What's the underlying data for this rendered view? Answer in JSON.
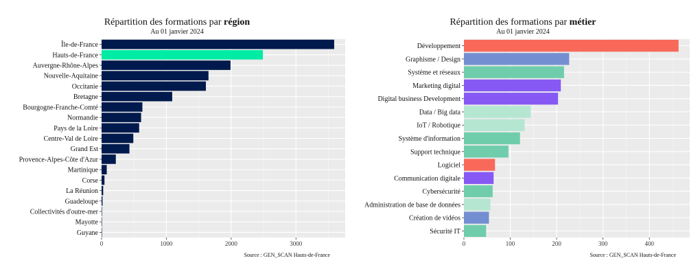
{
  "chart_data": [
    {
      "type": "bar",
      "orientation": "horizontal",
      "title_prefix": "Répartition des formations par ",
      "title_bold": "région",
      "subtitle": "Au 01 janvier 2024",
      "source": "Source : GEN_SCAN Hauts-de-France",
      "categories": [
        "Île-de-France",
        "Hauts-de-France",
        "Auvergne-Rhône-Alpes",
        "Nouvelle-Aquitaine",
        "Occitanie",
        "Bretagne",
        "Bourgogne-Franche-Comté",
        "Normandie",
        "Pays de la Loire",
        "Centre-Val de Loire",
        "Grand Est",
        "Provence-Alpes-Côte d'Azur",
        "Martinique",
        "Corse",
        "La Réunion",
        "Guadeloupe",
        "Collectivités d'outre-mer",
        "Mayotte",
        "Guyane"
      ],
      "values": [
        3590,
        2490,
        1990,
        1650,
        1610,
        1090,
        630,
        610,
        580,
        490,
        430,
        220,
        80,
        45,
        25,
        15,
        5,
        3,
        2
      ],
      "colors": [
        "#001a4d",
        "#00eba3",
        "#001a4d",
        "#001a4d",
        "#001a4d",
        "#001a4d",
        "#001a4d",
        "#001a4d",
        "#001a4d",
        "#001a4d",
        "#001a4d",
        "#001a4d",
        "#001a4d",
        "#001a4d",
        "#001a4d",
        "#001a4d",
        "#001a4d",
        "#001a4d",
        "#001a4d"
      ],
      "xlim": [
        0,
        3760
      ],
      "xticks": [
        0,
        1000,
        2000,
        3000
      ],
      "grid": true,
      "background": "#ebebeb"
    },
    {
      "type": "bar",
      "orientation": "horizontal",
      "title_prefix": "Répartition des formations par ",
      "title_bold": "métier",
      "subtitle": "Au 01 janvier 2024",
      "source": "Source : GEN_SCAN Hauts-de-France",
      "categories": [
        "Développement",
        "Graphisme / Design",
        "Système et réseaux",
        "Marketing digital",
        "Digital business Development",
        "Data / Big data",
        "IoT / Robotique",
        "Système d'information",
        "Support technique",
        "Logiciel",
        "Communication digitale",
        "Cybersécurité",
        "Administration de base de données",
        "Création de vidéos",
        "Sécurité IT"
      ],
      "values": [
        463,
        227,
        216,
        209,
        203,
        144,
        131,
        121,
        96,
        67,
        64,
        62,
        57,
        54,
        48
      ],
      "colors": [
        "#f8695a",
        "#748fd1",
        "#6fcdac",
        "#8759f4",
        "#8759f4",
        "#b5e6d2",
        "#b5e6d2",
        "#6fcdac",
        "#6fcdac",
        "#f8695a",
        "#8759f4",
        "#6fcdac",
        "#b5e6d2",
        "#748fd1",
        "#6fcdac"
      ],
      "xlim": [
        0,
        487
      ],
      "xticks": [
        0,
        100,
        200,
        300,
        400
      ],
      "grid": true,
      "background": "#ebebeb"
    }
  ]
}
